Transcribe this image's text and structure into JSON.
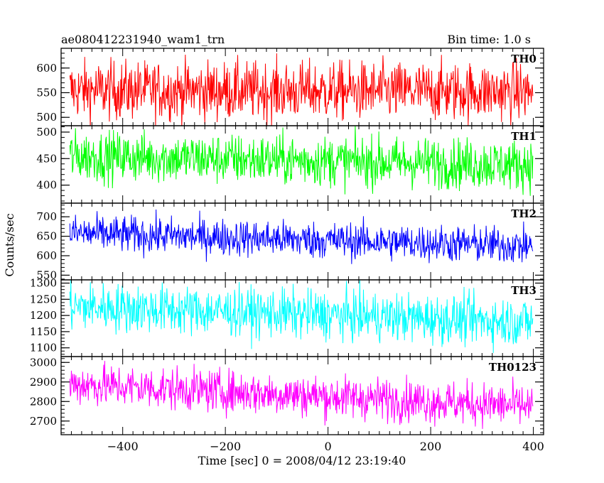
{
  "title_left": "ae080412231940_wam1_trn",
  "title_right": "Bin time: 1.0 s",
  "ylabel": "Counts/sec",
  "xlabel": "Time [sec] 0 = 2008/04/12 23:19:40",
  "chart_data": {
    "type": "line",
    "x_range": [
      -520,
      420
    ],
    "x_ticks": [
      -400,
      -200,
      0,
      200,
      400
    ],
    "x_tick_labels": [
      "−400",
      "−200",
      "0",
      "200",
      "400"
    ],
    "data_x_range": [
      -503,
      399
    ],
    "bin_time_s": 1.0,
    "panels": [
      {
        "name": "TH0",
        "color": "#ff0000",
        "ylim": [
          483,
          640
        ],
        "y_ticks": [
          500,
          550,
          600
        ],
        "mean_start": 555,
        "mean_end": 552,
        "spread": 30
      },
      {
        "name": "TH1",
        "color": "#00ff00",
        "ylim": [
          366,
          512
        ],
        "y_ticks": [
          400,
          450,
          500
        ],
        "mean_start": 455,
        "mean_end": 438,
        "spread": 24
      },
      {
        "name": "TH2",
        "color": "#0000ff",
        "ylim": [
          538,
          735
        ],
        "y_ticks": [
          550,
          600,
          650,
          700
        ],
        "mean_start": 658,
        "mean_end": 625,
        "spread": 24
      },
      {
        "name": "TH3",
        "color": "#00ffff",
        "ylim": [
          1073,
          1310
        ],
        "y_ticks": [
          1100,
          1150,
          1200,
          1250,
          1300
        ],
        "mean_start": 1228,
        "mean_end": 1180,
        "spread": 38
      },
      {
        "name": "TH0123",
        "color": "#ff00ff",
        "ylim": [
          2630,
          3030
        ],
        "y_ticks": [
          2700,
          2800,
          2900,
          3000
        ],
        "mean_start": 2890,
        "mean_end": 2775,
        "spread": 55
      }
    ]
  }
}
